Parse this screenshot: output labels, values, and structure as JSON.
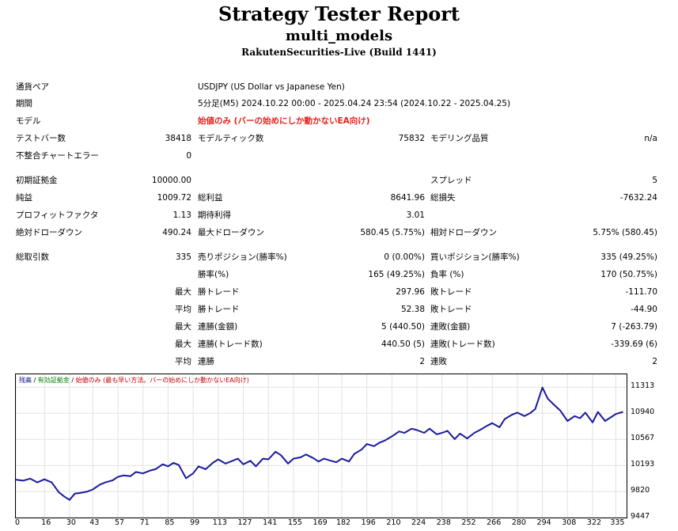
{
  "header": {
    "title": "Strategy Tester Report",
    "ea_name": "multi_models",
    "server": "RakutenSecurities-Live (Build 1441)"
  },
  "settings": {
    "symbol_label": "通貨ペア",
    "symbol_value": "USDJPY (US Dollar vs Japanese Yen)",
    "period_label": "期間",
    "period_value": "5分足(M5) 2024.10.22 00:00 - 2025.04.24 23:54 (2024.10.22 - 2025.04.25)",
    "model_label": "モデル",
    "model_value": "始値のみ (バーの始めにしか動かないEA向け)",
    "bars_label": "テストバー数",
    "bars_value": "38418",
    "ticks_label": "モデルティック数",
    "ticks_value": "75832",
    "quality_label": "モデリング品質",
    "quality_value": "n/a",
    "errors_label": "不整合チャートエラー",
    "errors_value": "0"
  },
  "results": {
    "deposit_label": "初期証拠金",
    "deposit_value": "10000.00",
    "spread_label": "スプレッド",
    "spread_value": "5",
    "net_label": "純益",
    "net_value": "1009.72",
    "gross_profit_label": "総利益",
    "gross_profit_value": "8641.96",
    "gross_loss_label": "総損失",
    "gross_loss_value": "-7632.24",
    "pf_label": "プロフィットファクタ",
    "pf_value": "1.13",
    "expected_label": "期待利得",
    "expected_value": "3.01",
    "abs_dd_label": "絶対ドローダウン",
    "abs_dd_value": "490.24",
    "max_dd_label": "最大ドローダウン",
    "max_dd_value": "580.45 (5.75%)",
    "rel_dd_label": "相対ドローダウン",
    "rel_dd_value": "5.75% (580.45)"
  },
  "trades": {
    "total_label": "総取引数",
    "total_value": "335",
    "short_label": "売りポジション(勝率%)",
    "short_value": "0 (0.00%)",
    "long_label": "買いポジション(勝率%)",
    "long_value": "335 (49.25%)",
    "win_rate_label": "勝率(%)",
    "win_rate_value": "165 (49.25%)",
    "loss_rate_label": "負率 (%)",
    "loss_rate_value": "170 (50.75%)",
    "max_label": "最大",
    "largest_win_label": "勝トレード",
    "largest_win_value": "297.96",
    "largest_loss_label": "敗トレード",
    "largest_loss_value": "-111.70",
    "avg_label": "平均",
    "avg_win_label": "勝トレード",
    "avg_win_value": "52.38",
    "avg_loss_label": "敗トレード",
    "avg_loss_value": "-44.90",
    "max2_label": "最大",
    "cons_wins_amt_label": "連勝(金額)",
    "cons_wins_amt_value": "5 (440.50)",
    "cons_losses_amt_label": "連敗(金額)",
    "cons_losses_amt_value": "7 (-263.79)",
    "max3_label": "最大",
    "cons_wins_cnt_label": "連勝(トレード数)",
    "cons_wins_cnt_value": "440.50 (5)",
    "cons_losses_cnt_label": "連敗(トレード数)",
    "cons_losses_cnt_value": "-339.69 (6)",
    "avg2_label": "平均",
    "avg_cons_wins_label": "連勝",
    "avg_cons_wins_value": "2",
    "avg_cons_losses_label": "連敗",
    "avg_cons_losses_value": "2"
  },
  "chart_legend": {
    "balance": "残高",
    "sep1": " / ",
    "margin": "有効証拠金",
    "sep2": " / ",
    "model": "始値のみ (最も早い方法。バーの始めにしか動かないEA向け)",
    "color_balance": "#000080",
    "color_margin": "#008000",
    "color_model": "#c00000"
  },
  "chart_data": {
    "type": "line",
    "title": "",
    "xlabel": "",
    "ylabel": "",
    "xlim": [
      0,
      341
    ],
    "ylim": [
      9447,
      11499
    ],
    "y_ticks": [
      11313,
      10940,
      10567,
      10193,
      9820,
      9447
    ],
    "x_ticks": [
      0,
      16,
      30,
      43,
      57,
      71,
      85,
      99,
      113,
      127,
      141,
      155,
      169,
      182,
      196,
      210,
      224,
      238,
      252,
      266,
      280,
      294,
      308,
      322,
      335
    ],
    "series": [
      {
        "color": "#1a1a9c",
        "x": [
          0,
          4,
          8,
          12,
          16,
          20,
          24,
          27,
          30,
          33,
          36,
          40,
          43,
          47,
          50,
          54,
          57,
          60,
          64,
          67,
          71,
          75,
          78,
          82,
          85,
          88,
          91,
          95,
          99,
          102,
          106,
          110,
          113,
          117,
          120,
          124,
          127,
          131,
          134,
          138,
          141,
          145,
          148,
          152,
          155,
          159,
          162,
          166,
          169,
          172,
          176,
          179,
          182,
          186,
          189,
          193,
          196,
          200,
          203,
          206,
          210,
          214,
          217,
          221,
          224,
          228,
          231,
          235,
          238,
          241,
          245,
          248,
          252,
          256,
          259,
          263,
          266,
          270,
          273,
          277,
          280,
          284,
          287,
          290,
          294,
          297,
          301,
          304,
          308,
          312,
          315,
          318,
          322,
          325,
          329,
          332,
          335,
          339
        ],
        "values": [
          9990,
          9975,
          10005,
          9950,
          9995,
          9950,
          9810,
          9750,
          9700,
          9790,
          9800,
          9820,
          9850,
          9920,
          9950,
          9980,
          10030,
          10050,
          10040,
          10100,
          10080,
          10120,
          10140,
          10210,
          10180,
          10230,
          10200,
          10010,
          10080,
          10180,
          10140,
          10230,
          10280,
          10220,
          10250,
          10290,
          10210,
          10260,
          10180,
          10290,
          10280,
          10390,
          10340,
          10220,
          10290,
          10310,
          10350,
          10300,
          10250,
          10290,
          10260,
          10240,
          10290,
          10250,
          10360,
          10420,
          10500,
          10470,
          10520,
          10550,
          10610,
          10680,
          10660,
          10720,
          10700,
          10660,
          10720,
          10640,
          10660,
          10690,
          10570,
          10650,
          10580,
          10660,
          10700,
          10760,
          10800,
          10740,
          10860,
          10920,
          10950,
          10900,
          10940,
          11000,
          11310,
          11150,
          11050,
          10980,
          10830,
          10900,
          10870,
          10950,
          10810,
          10960,
          10830,
          10880,
          10930,
          10960
        ]
      }
    ],
    "grid": true
  }
}
